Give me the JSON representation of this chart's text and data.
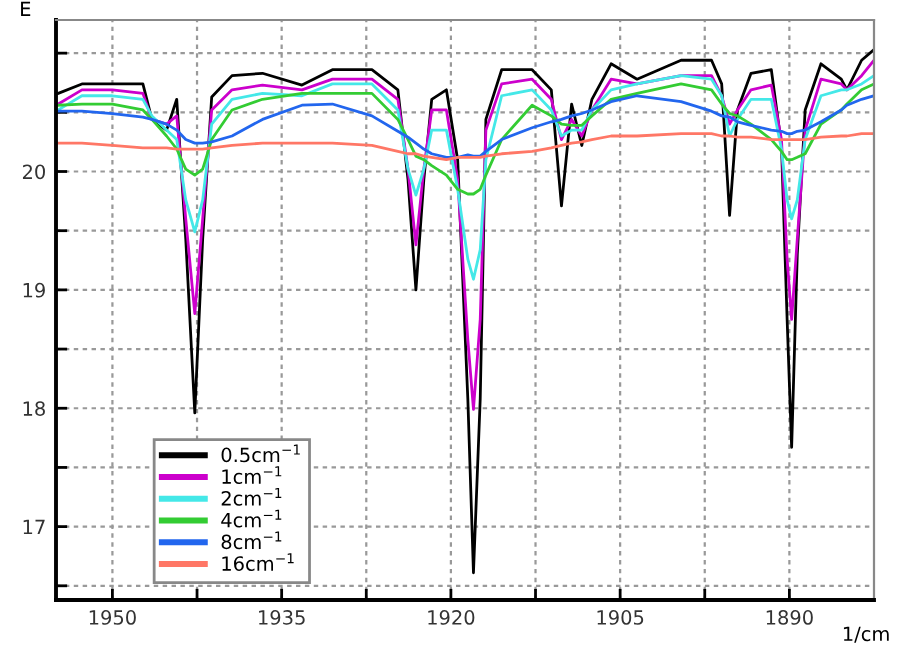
{
  "chart_data": {
    "type": "line",
    "xlabel": "1/cm",
    "ylabel": "E",
    "x": [
      1954.8,
      1952.7,
      1950,
      1947.3,
      1946.5,
      1945.2,
      1944.3,
      1943.5,
      1942.7,
      1942.0,
      1941.2,
      1939.4,
      1936.7,
      1933.2,
      1930.5,
      1927.0,
      1924.7,
      1923.8,
      1923.1,
      1922.4,
      1921.7,
      1920.4,
      1919.4,
      1918.5,
      1918.0,
      1917.4,
      1916.9,
      1915.5,
      1912.8,
      1911.1,
      1910.2,
      1909.3,
      1908.4,
      1907.5,
      1905.8,
      1903.5,
      1899.6,
      1896.9,
      1896.0,
      1895.3,
      1894.6,
      1893.4,
      1891.6,
      1890.7,
      1890.2,
      1889.8,
      1889.3,
      1888.6,
      1887.2,
      1885.4,
      1884.9,
      1883.6,
      1882.5
    ],
    "series": [
      {
        "name": "0.5cm$^{−1}$",
        "color": "#000000",
        "values": [
          20.66,
          20.74,
          20.74,
          20.74,
          20.44,
          20.35,
          20.61,
          19.43,
          17.96,
          19.43,
          20.63,
          20.81,
          20.83,
          20.73,
          20.86,
          20.86,
          20.69,
          19.93,
          19.0,
          19.93,
          20.61,
          20.69,
          20.1,
          18.08,
          16.61,
          18.08,
          20.44,
          20.86,
          20.86,
          20.69,
          19.71,
          20.57,
          20.22,
          20.61,
          20.91,
          20.78,
          20.94,
          20.94,
          20.74,
          19.63,
          20.52,
          20.83,
          20.86,
          20.22,
          18.75,
          17.67,
          19.3,
          20.52,
          20.91,
          20.78,
          20.69,
          20.94,
          21.03
        ]
      },
      {
        "name": "1cm$^{−1}$",
        "color": "#cc00cc",
        "values": [
          20.57,
          20.69,
          20.69,
          20.66,
          20.44,
          20.4,
          20.47,
          19.6,
          18.8,
          19.6,
          20.52,
          20.69,
          20.73,
          20.69,
          20.78,
          20.78,
          20.61,
          20.02,
          19.38,
          20.02,
          20.52,
          20.52,
          19.93,
          18.58,
          17.99,
          18.75,
          20.35,
          20.74,
          20.78,
          20.61,
          20.27,
          20.44,
          20.3,
          20.52,
          20.78,
          20.74,
          20.81,
          20.81,
          20.64,
          20.4,
          20.52,
          20.69,
          20.73,
          20.27,
          19.26,
          18.75,
          19.43,
          20.35,
          20.78,
          20.74,
          20.69,
          20.81,
          20.94
        ]
      },
      {
        "name": "2cm$^{−1}$",
        "color": "#44e8e8",
        "values": [
          20.52,
          20.64,
          20.64,
          20.61,
          20.47,
          20.35,
          20.27,
          19.76,
          19.49,
          19.76,
          20.4,
          20.61,
          20.66,
          20.64,
          20.74,
          20.74,
          20.52,
          20.02,
          19.8,
          20.02,
          20.35,
          20.35,
          19.85,
          19.26,
          19.09,
          19.34,
          20.1,
          20.64,
          20.69,
          20.52,
          20.3,
          20.35,
          20.35,
          20.52,
          20.69,
          20.74,
          20.81,
          20.78,
          20.64,
          20.3,
          20.44,
          20.61,
          20.61,
          20.19,
          19.76,
          19.6,
          19.76,
          20.27,
          20.64,
          20.69,
          20.69,
          20.74,
          20.81
        ]
      },
      {
        "name": "4cm$^{−1}$",
        "color": "#33cc33",
        "values": [
          20.56,
          20.57,
          20.57,
          20.52,
          20.44,
          20.3,
          20.19,
          20.02,
          19.97,
          20.02,
          20.27,
          20.52,
          20.61,
          20.66,
          20.66,
          20.66,
          20.44,
          20.27,
          20.13,
          20.1,
          20.05,
          19.97,
          19.85,
          19.81,
          19.81,
          19.85,
          19.97,
          20.27,
          20.56,
          20.47,
          20.4,
          20.39,
          20.39,
          20.47,
          20.61,
          20.66,
          20.74,
          20.69,
          20.57,
          20.49,
          20.47,
          20.4,
          20.27,
          20.17,
          20.1,
          20.1,
          20.12,
          20.15,
          20.4,
          20.52,
          20.57,
          20.69,
          20.74
        ]
      },
      {
        "name": "8cm$^{−1}$",
        "color": "#2266ee",
        "values": [
          20.51,
          20.51,
          20.49,
          20.46,
          20.44,
          20.4,
          20.35,
          20.27,
          20.24,
          20.24,
          20.25,
          20.3,
          20.44,
          20.56,
          20.57,
          20.47,
          20.34,
          20.29,
          20.24,
          20.19,
          20.15,
          20.12,
          20.12,
          20.14,
          20.13,
          20.13,
          20.17,
          20.27,
          20.37,
          20.42,
          20.44,
          20.47,
          20.49,
          20.52,
          20.59,
          20.64,
          20.59,
          20.51,
          20.47,
          20.46,
          20.42,
          20.39,
          20.35,
          20.34,
          20.32,
          20.32,
          20.34,
          20.35,
          20.42,
          20.52,
          20.56,
          20.61,
          20.64
        ]
      },
      {
        "name": "16cm$^{−1}$",
        "color": "#ff7766",
        "values": [
          20.24,
          20.24,
          20.22,
          20.2,
          20.2,
          20.2,
          20.19,
          20.19,
          20.19,
          20.19,
          20.2,
          20.22,
          20.24,
          20.24,
          20.24,
          20.22,
          20.17,
          20.15,
          20.15,
          20.13,
          20.12,
          20.1,
          20.12,
          20.12,
          20.12,
          20.12,
          20.13,
          20.15,
          20.17,
          20.2,
          20.22,
          20.24,
          20.25,
          20.27,
          20.3,
          20.3,
          20.32,
          20.32,
          20.3,
          20.3,
          20.29,
          20.29,
          20.27,
          20.27,
          20.27,
          20.27,
          20.27,
          20.27,
          20.29,
          20.3,
          20.3,
          20.32,
          20.32
        ]
      }
    ],
    "xlim": [
      1955,
      1882.5
    ],
    "xticks": [
      1950,
      {
        "value": 1942.5,
        "label": null
      },
      1935,
      {
        "value": 1927.5,
        "label": null
      },
      1920,
      {
        "value": 1912.5,
        "label": null
      },
      1905,
      {
        "value": 1897.5,
        "label": null
      },
      1890
    ],
    "ylim": [
      16.38,
      21.28
    ],
    "yticks": [
      {
        "value": 16.5,
        "label": null
      },
      17,
      {
        "value": 17.5,
        "label": null
      },
      18,
      {
        "value": 18.5,
        "label": null
      },
      19,
      {
        "value": 19.5,
        "label": null
      },
      20,
      {
        "value": 20.5,
        "label": null
      },
      {
        "value": 21,
        "label": null
      }
    ],
    "grid": true,
    "legend": "bottom left",
    "marker": "none",
    "line_style": "solid"
  }
}
